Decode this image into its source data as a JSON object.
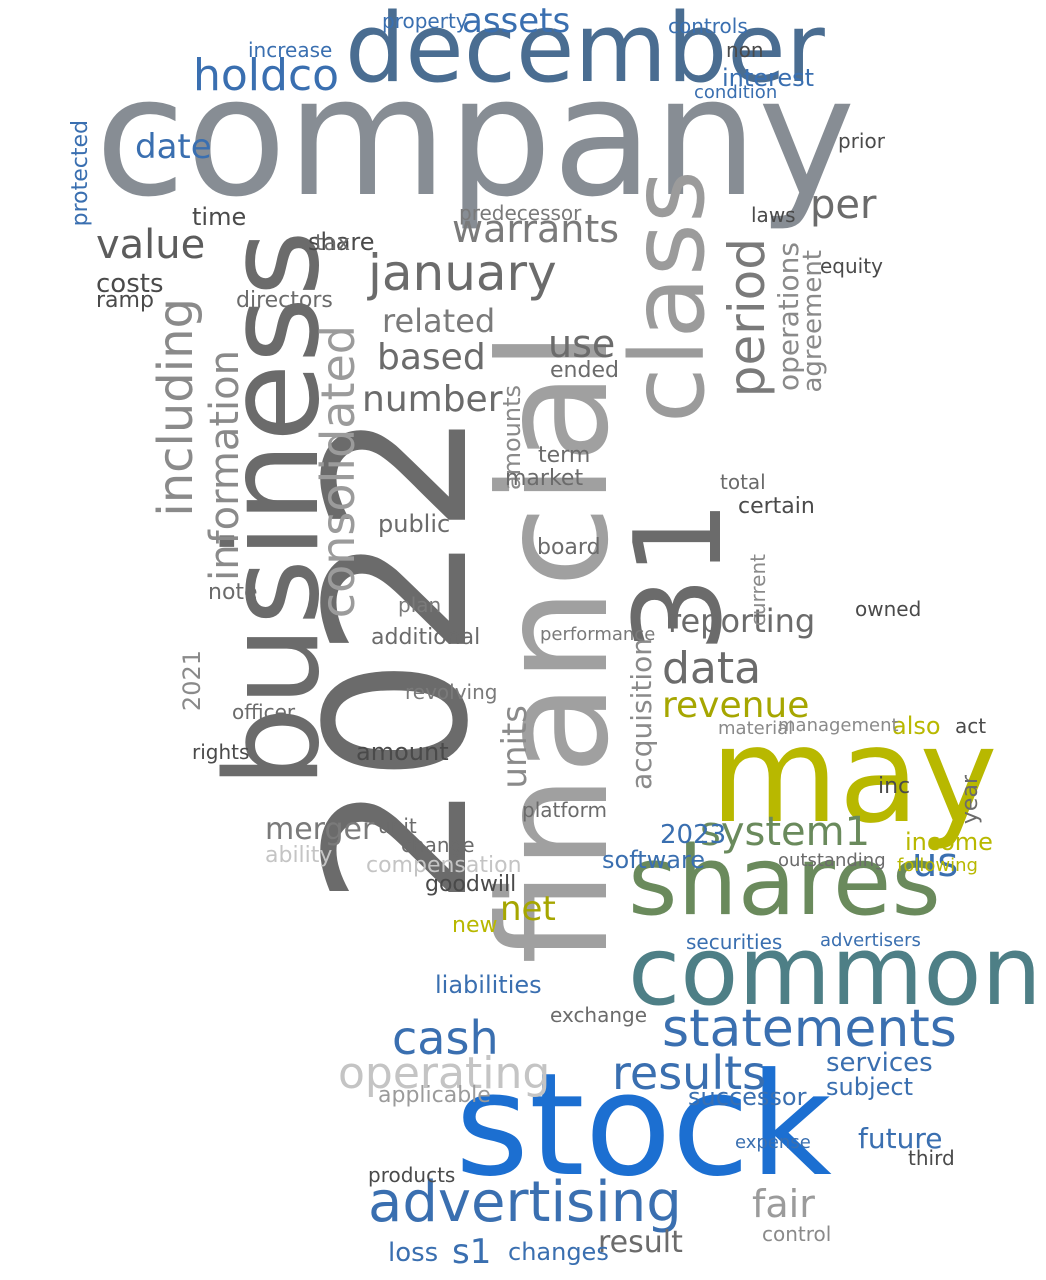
{
  "wordcloud": {
    "words": [
      {
        "text": "company",
        "color": "#878d94"
      },
      {
        "text": "december",
        "color": "#4a6d91"
      },
      {
        "text": "business",
        "color": "#6b6b6b"
      },
      {
        "text": "2022",
        "color": "#6b6b6b"
      },
      {
        "text": "financial",
        "color": "#a0a0a0"
      },
      {
        "text": "stock",
        "color": "#1c6fd1"
      },
      {
        "text": "may",
        "color": "#b8b800"
      },
      {
        "text": "shares",
        "color": "#6a8a5c"
      },
      {
        "text": "common",
        "color": "#4e7f86"
      },
      {
        "text": "31",
        "color": "#6b6b6b"
      },
      {
        "text": "class",
        "color": "#9b9b9b"
      },
      {
        "text": "statements",
        "color": "#3a6fb0"
      },
      {
        "text": "advertising",
        "color": "#3a6fb0"
      },
      {
        "text": "holdco",
        "color": "#3a6fb0"
      },
      {
        "text": "january",
        "color": "#6b6b6b"
      },
      {
        "text": "consolidated",
        "color": "#9b9b9b"
      },
      {
        "text": "including",
        "color": "#8a8a8a"
      },
      {
        "text": "information",
        "color": "#8a8a8a"
      },
      {
        "text": "period",
        "color": "#7a7a7a"
      },
      {
        "text": "value",
        "color": "#5c5c5c"
      },
      {
        "text": "warrants",
        "color": "#7a7a7a"
      },
      {
        "text": "cash",
        "color": "#3a6fb0"
      },
      {
        "text": "operating",
        "color": "#c4c4c4"
      },
      {
        "text": "results",
        "color": "#3a6fb0"
      },
      {
        "text": "revenue",
        "color": "#a6a600"
      },
      {
        "text": "data",
        "color": "#6b6b6b"
      },
      {
        "text": "per",
        "color": "#6b6b6b"
      },
      {
        "text": "assets",
        "color": "#3a6fb0"
      },
      {
        "text": "date",
        "color": "#3a6fb0"
      },
      {
        "text": "system1",
        "color": "#6a8a5c"
      },
      {
        "text": "fair",
        "color": "#9b9b9b"
      },
      {
        "text": "us",
        "color": "#3a6fb0"
      },
      {
        "text": "net",
        "color": "#a6a600"
      },
      {
        "text": "based",
        "color": "#6b6b6b"
      },
      {
        "text": "number",
        "color": "#6b6b6b"
      },
      {
        "text": "use",
        "color": "#6b6b6b"
      },
      {
        "text": "related",
        "color": "#7a7a7a"
      },
      {
        "text": "units",
        "color": "#8a8a8a"
      },
      {
        "text": "amounts",
        "color": "#8a8a8a"
      },
      {
        "text": "acquisition",
        "color": "#8a8a8a"
      },
      {
        "text": "reporting",
        "color": "#6b6b6b"
      },
      {
        "text": "operations",
        "color": "#8a8a8a"
      },
      {
        "text": "agreement",
        "color": "#8a8a8a"
      },
      {
        "text": "s1",
        "color": "#3a6fb0"
      },
      {
        "text": "result",
        "color": "#6b6b6b"
      },
      {
        "text": "loss",
        "color": "#3a6fb0"
      },
      {
        "text": "changes",
        "color": "#3a6fb0"
      },
      {
        "text": "services",
        "color": "#3a6fb0"
      },
      {
        "text": "future",
        "color": "#3a6fb0"
      },
      {
        "text": "subject",
        "color": "#3a6fb0"
      },
      {
        "text": "successor",
        "color": "#3a6fb0"
      },
      {
        "text": "software",
        "color": "#3a6fb0"
      },
      {
        "text": "2023",
        "color": "#3a6fb0"
      },
      {
        "text": "income",
        "color": "#b8b800"
      },
      {
        "text": "merger",
        "color": "#7a7a7a"
      },
      {
        "text": "ability",
        "color": "#c4c4c4"
      },
      {
        "text": "compensation",
        "color": "#c4c4c4"
      },
      {
        "text": "applicable",
        "color": "#9b9b9b"
      },
      {
        "text": "goodwill",
        "color": "#4a4a4a"
      },
      {
        "text": "liabilities",
        "color": "#3a6fb0"
      },
      {
        "text": "exchange",
        "color": "#6b6b6b"
      },
      {
        "text": "new",
        "color": "#b8b800"
      },
      {
        "text": "amount",
        "color": "#4a4a4a"
      },
      {
        "text": "additional",
        "color": "#6b6b6b"
      },
      {
        "text": "revolving",
        "color": "#7a7a7a"
      },
      {
        "text": "costs",
        "color": "#4a4a4a"
      },
      {
        "text": "ramp",
        "color": "#4a4a4a"
      },
      {
        "text": "time",
        "color": "#4a4a4a"
      },
      {
        "text": "share",
        "color": "#4a4a4a"
      },
      {
        "text": "tax",
        "color": "#6b6b6b"
      },
      {
        "text": "directors",
        "color": "#6b6b6b"
      },
      {
        "text": "2021",
        "color": "#8a8a8a"
      },
      {
        "text": "note",
        "color": "#6b6b6b"
      },
      {
        "text": "protected",
        "color": "#3a6fb0"
      },
      {
        "text": "interest",
        "color": "#3a6fb0"
      },
      {
        "text": "controls",
        "color": "#3a6fb0"
      },
      {
        "text": "condition",
        "color": "#3a6fb0"
      },
      {
        "text": "laws",
        "color": "#4a4a4a"
      },
      {
        "text": "equity",
        "color": "#4a4a4a"
      },
      {
        "text": "owned",
        "color": "#4a4a4a"
      },
      {
        "text": "also",
        "color": "#b8b800"
      },
      {
        "text": "inc",
        "color": "#4a4a4a"
      },
      {
        "text": "act",
        "color": "#4a4a4a"
      },
      {
        "text": "year",
        "color": "#6b6b6b"
      },
      {
        "text": "platform",
        "color": "#6b6b6b"
      },
      {
        "text": "certain",
        "color": "#4a4a4a"
      },
      {
        "text": "total",
        "color": "#6b6b6b"
      },
      {
        "text": "market",
        "color": "#6b6b6b"
      },
      {
        "text": "term",
        "color": "#6b6b6b"
      },
      {
        "text": "public",
        "color": "#6b6b6b"
      },
      {
        "text": "board",
        "color": "#6b6b6b"
      },
      {
        "text": "ended",
        "color": "#6b6b6b"
      },
      {
        "text": "performance",
        "color": "#7a7a7a"
      },
      {
        "text": "plan",
        "color": "#7a7a7a"
      },
      {
        "text": "officer",
        "color": "#6b6b6b"
      },
      {
        "text": "rights",
        "color": "#4a4a4a"
      },
      {
        "text": "management",
        "color": "#8a8a8a"
      },
      {
        "text": "material",
        "color": "#8a8a8a"
      },
      {
        "text": "outstanding",
        "color": "#6b6b6b"
      },
      {
        "text": "following",
        "color": "#b8b800"
      },
      {
        "text": "securities",
        "color": "#3a6fb0"
      },
      {
        "text": "advertisers",
        "color": "#3a6fb0"
      },
      {
        "text": "expense",
        "color": "#3a6fb0"
      },
      {
        "text": "third",
        "color": "#4a4a4a"
      },
      {
        "text": "products",
        "color": "#4a4a4a"
      },
      {
        "text": "control",
        "color": "#8a8a8a"
      },
      {
        "text": "unit",
        "color": "#6b6b6b"
      },
      {
        "text": "change",
        "color": "#6b6b6b"
      },
      {
        "text": "predecessor",
        "color": "#7a7a7a"
      },
      {
        "text": "current",
        "color": "#8a8a8a"
      },
      {
        "text": "prior",
        "color": "#4a4a4a"
      },
      {
        "text": "non",
        "color": "#4a4a4a"
      },
      {
        "text": "increase",
        "color": "#3a6fb0"
      },
      {
        "text": "property",
        "color": "#3a6fb0"
      }
    ]
  }
}
